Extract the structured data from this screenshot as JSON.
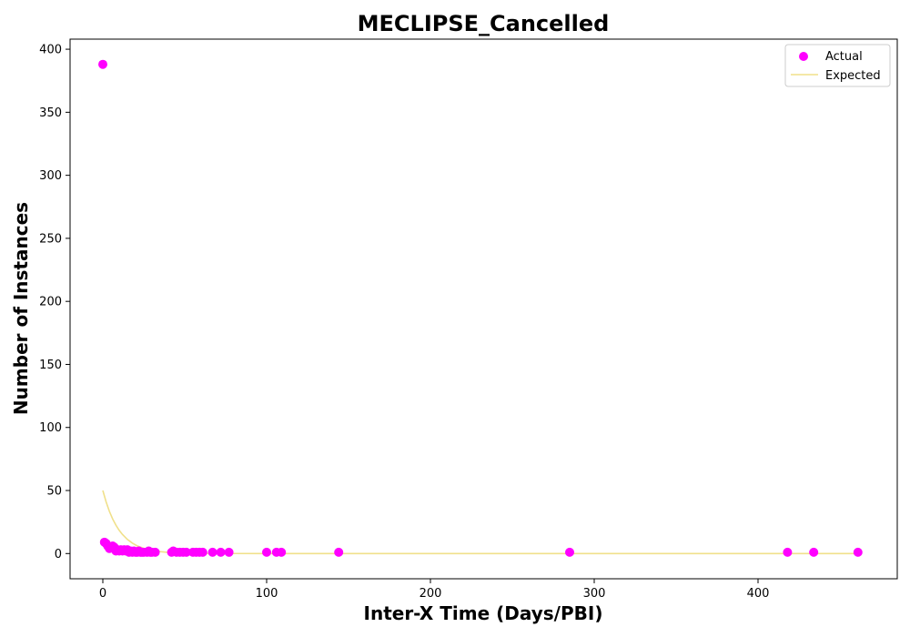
{
  "chart_data": {
    "type": "scatter",
    "title": "MECLIPSE_Cancelled",
    "xlabel": "Inter-X Time (Days/PBI)",
    "ylabel": "Number of Instances",
    "xlim": [
      -20,
      485
    ],
    "ylim": [
      -20,
      408
    ],
    "xticks": [
      0,
      100,
      200,
      300,
      400
    ],
    "yticks": [
      0,
      50,
      100,
      150,
      200,
      250,
      300,
      350,
      400
    ],
    "legend_position": "top-right",
    "grid": false,
    "series": [
      {
        "name": "Actual",
        "kind": "scatter",
        "color": "#ff00ff",
        "points": [
          [
            0,
            388
          ],
          [
            1,
            9
          ],
          [
            2,
            8
          ],
          [
            3,
            6
          ],
          [
            4,
            4
          ],
          [
            5,
            5
          ],
          [
            6,
            6
          ],
          [
            7,
            5
          ],
          [
            8,
            2
          ],
          [
            9,
            3
          ],
          [
            10,
            2
          ],
          [
            11,
            3
          ],
          [
            12,
            2
          ],
          [
            13,
            3
          ],
          [
            14,
            2
          ],
          [
            15,
            3
          ],
          [
            16,
            1
          ],
          [
            17,
            2
          ],
          [
            18,
            1
          ],
          [
            19,
            2
          ],
          [
            20,
            1
          ],
          [
            21,
            1
          ],
          [
            22,
            2
          ],
          [
            23,
            1
          ],
          [
            24,
            1
          ],
          [
            25,
            1
          ],
          [
            27,
            1
          ],
          [
            28,
            2
          ],
          [
            29,
            1
          ],
          [
            30,
            1
          ],
          [
            32,
            1
          ],
          [
            42,
            1
          ],
          [
            43,
            2
          ],
          [
            45,
            1
          ],
          [
            47,
            1
          ],
          [
            49,
            1
          ],
          [
            51,
            1
          ],
          [
            55,
            1
          ],
          [
            57,
            1
          ],
          [
            59,
            1
          ],
          [
            61,
            1
          ],
          [
            67,
            1
          ],
          [
            72,
            1
          ],
          [
            77,
            1
          ],
          [
            100,
            1
          ],
          [
            106,
            1
          ],
          [
            109,
            1
          ],
          [
            144,
            1
          ],
          [
            285,
            1
          ],
          [
            418,
            1
          ],
          [
            434,
            1
          ],
          [
            461,
            1
          ]
        ]
      },
      {
        "name": "Expected",
        "kind": "line",
        "color": "#f0e08a",
        "points": [
          [
            0,
            50
          ],
          [
            2,
            41
          ],
          [
            4,
            33.5
          ],
          [
            6,
            27.4
          ],
          [
            8,
            22.5
          ],
          [
            10,
            18.4
          ],
          [
            12,
            15.1
          ],
          [
            15,
            11.2
          ],
          [
            18,
            8.3
          ],
          [
            21,
            6.1
          ],
          [
            25,
            4.1
          ],
          [
            30,
            2.5
          ],
          [
            35,
            1.5
          ],
          [
            40,
            0.9
          ],
          [
            50,
            0.34
          ],
          [
            60,
            0.12
          ],
          [
            80,
            0.02
          ],
          [
            100,
            0
          ],
          [
            200,
            0
          ],
          [
            300,
            0
          ],
          [
            400,
            0
          ],
          [
            461,
            0
          ]
        ]
      }
    ]
  }
}
